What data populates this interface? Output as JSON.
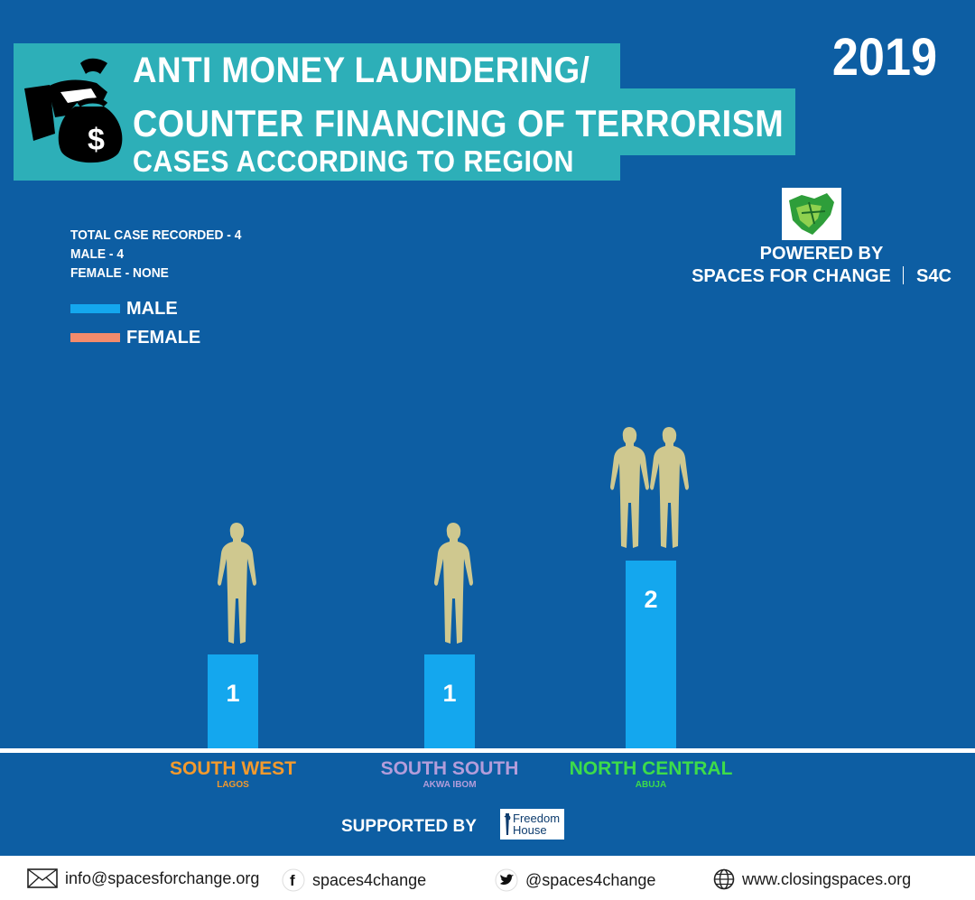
{
  "title": {
    "line1": "ANTI MONEY LAUNDERING/",
    "line2": "COUNTER FINANCING OF TERRORISM",
    "line3": "CASES ACCORDING TO REGION"
  },
  "year": "2019",
  "powered_by": {
    "label": "POWERED BY",
    "org": "SPACES FOR CHANGE",
    "abbr": "S4C"
  },
  "stats": {
    "total": "TOTAL CASE RECORDED - 4",
    "male": "MALE - 4",
    "female": "FEMALE - NONE"
  },
  "legend": [
    {
      "label": "MALE",
      "color": "#14a7ee"
    },
    {
      "label": "FEMALE",
      "color": "#f28b6c"
    }
  ],
  "chart_data": {
    "type": "bar",
    "categories": [
      "SOUTH WEST",
      "SOUTH SOUTH",
      "NORTH CENTRAL"
    ],
    "subcategories": [
      "LAGOS",
      "AKWA IBOM",
      "ABUJA"
    ],
    "category_colors": [
      "#f39a2d",
      "#b39ddb",
      "#3ddc4a"
    ],
    "series": [
      {
        "name": "MALE",
        "values": [
          1,
          1,
          2
        ],
        "color": "#14a7ee"
      },
      {
        "name": "FEMALE",
        "values": [
          0,
          0,
          0
        ],
        "color": "#f28b6c"
      }
    ],
    "data_labels": [
      "1",
      "1",
      "2"
    ],
    "figure_color": "#cfc88f",
    "grid": false
  },
  "supported_by": {
    "label": "SUPPORTED BY",
    "logo_line1": "Freedom",
    "logo_line2": "House"
  },
  "footer": {
    "email": "info@spacesforchange.org",
    "facebook": "spaces4change",
    "twitter": "@spaces4change",
    "website": "www.closingspaces.org"
  },
  "icons": [
    "money-bag-icon",
    "envelope-icon",
    "facebook-icon",
    "twitter-icon",
    "globe-icon",
    "person-silhouette-icon",
    "nigeria-map-logo",
    "freedom-house-logo"
  ]
}
